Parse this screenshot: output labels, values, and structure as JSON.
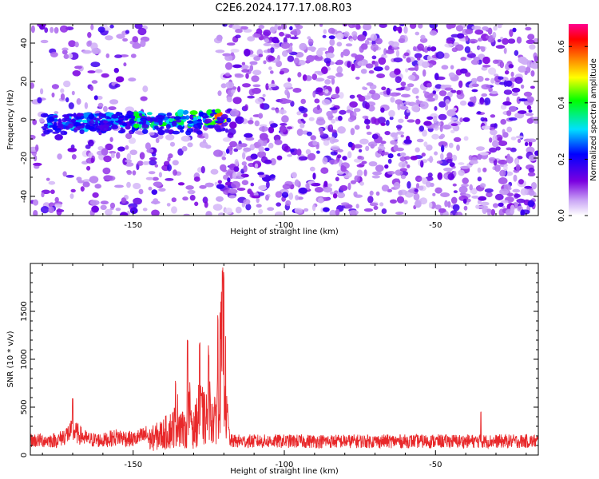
{
  "title": "C2E6.2024.177.17.08.R03",
  "chart_data": [
    {
      "type": "heatmap",
      "xlabel": "Height of straight line (km)",
      "ylabel": "Frequency (Hz)",
      "xlim": [
        -184,
        -16
      ],
      "ylim": [
        -50,
        50
      ],
      "x_ticks": [
        -150,
        -100,
        -50
      ],
      "y_ticks": [
        -40,
        -20,
        0,
        20,
        40
      ],
      "colorbar": {
        "label": "Normalized spectral amplitude",
        "range": [
          0,
          0.68
        ],
        "ticks": [
          0.0,
          0.2,
          0.4,
          0.6
        ],
        "colormap": [
          "#ffffff",
          "#7b00e0",
          "#0000ff",
          "#00e0ff",
          "#00ff00",
          "#ffff00",
          "#ff8000",
          "#ff0000",
          "#ff00a0"
        ]
      },
      "features": [
        {
          "x_range": [
            -184,
            -120
          ],
          "freq_hz": [
            -6,
            2
          ],
          "amplitude": [
            0.2,
            0.55
          ]
        },
        {
          "x_range": [
            -146,
            -122
          ],
          "freq_hz": [
            0,
            50
          ],
          "amplitude": [
            0,
            0
          ]
        },
        {
          "x_range": [
            -184,
            -16
          ],
          "freq_hz": [
            -50,
            50
          ],
          "amplitude": [
            0.02,
            0.12
          ]
        }
      ],
      "grid": false
    },
    {
      "type": "line",
      "xlabel": "Height of straight line (km)",
      "ylabel": "SNR (10 * v/v)",
      "xlim": [
        -184,
        -16
      ],
      "ylim": [
        0,
        2000
      ],
      "x_ticks": [
        -150,
        -100,
        -50
      ],
      "y_ticks": [
        0,
        500,
        1000,
        1500
      ],
      "grid": false,
      "color": "#e8282a",
      "series": [
        {
          "x": [
            -184,
            -175,
            -170,
            -165,
            -160,
            -155,
            -150,
            -145,
            -140,
            -137,
            -135,
            -133,
            -131,
            -130,
            -128,
            -126,
            -125,
            -123,
            -122,
            -121,
            -120,
            -119,
            -118,
            -110,
            -100,
            -90,
            -80,
            -70,
            -60,
            -50,
            -40,
            -30,
            -16
          ],
          "baseline": [
            170,
            170,
            280,
            180,
            170,
            210,
            180,
            240,
            340,
            420,
            600,
            340,
            720,
            380,
            700,
            540,
            760,
            520,
            1000,
            1450,
            1950,
            500,
            160,
            160,
            160,
            160,
            160,
            160,
            160,
            160,
            160,
            160,
            160
          ],
          "peaks": [
            {
              "x": -170,
              "y": 600
            },
            {
              "x": -136,
              "y": 780
            },
            {
              "x": -132,
              "y": 1300
            },
            {
              "x": -128,
              "y": 1220
            },
            {
              "x": -125,
              "y": 1150
            },
            {
              "x": -122,
              "y": 1480
            },
            {
              "x": -120,
              "y": 2000
            },
            {
              "x": -35,
              "y": 480
            }
          ]
        }
      ]
    }
  ]
}
